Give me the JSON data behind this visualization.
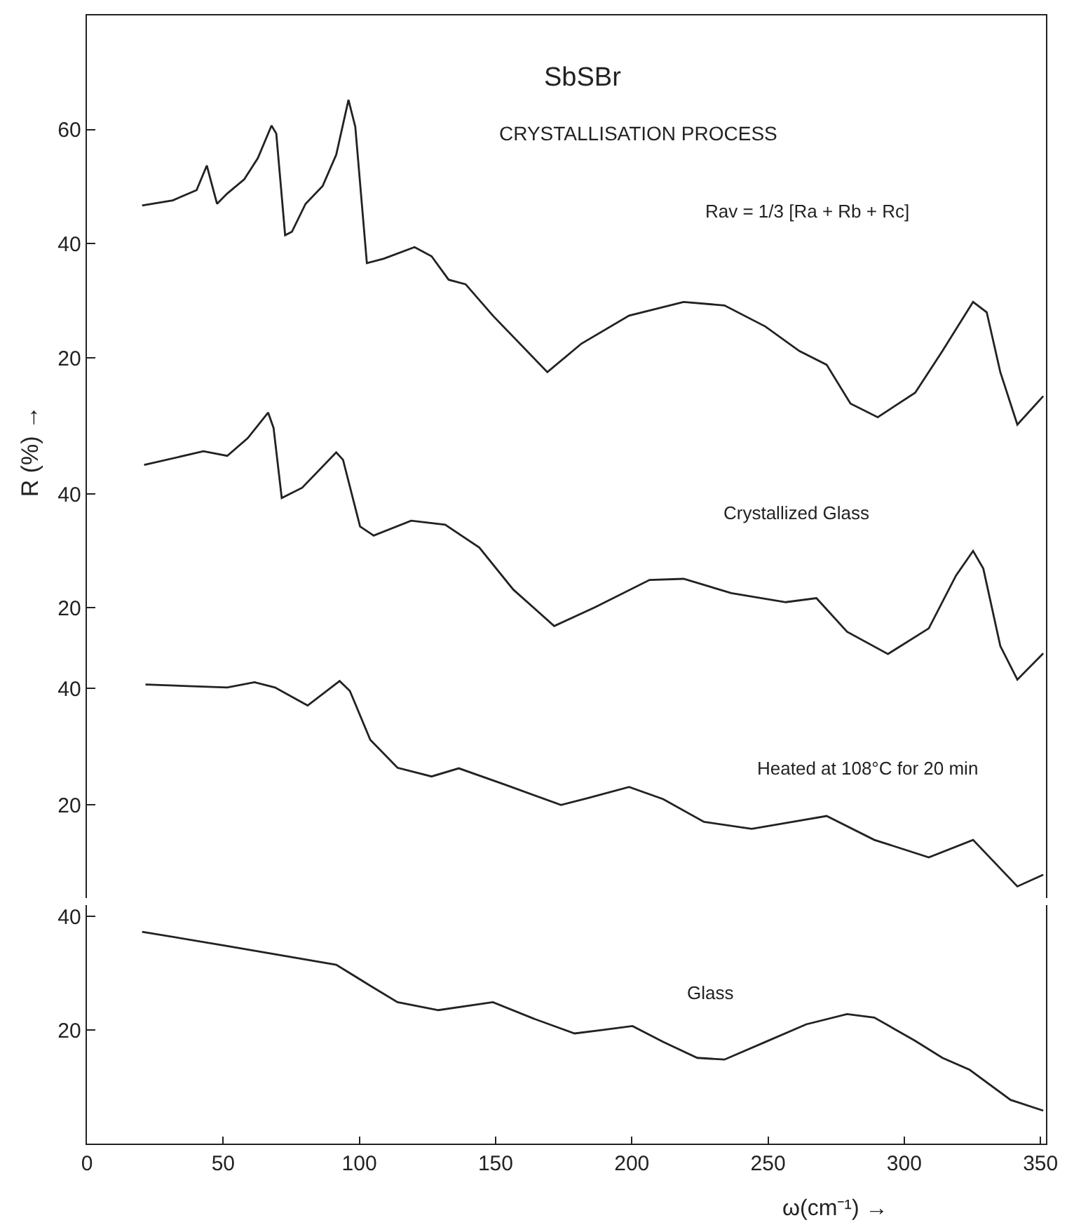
{
  "chart_data": [
    {
      "type": "line",
      "title": "SbSBr",
      "subtitle": "CRYSTALLISATION PROCESS",
      "xlim": [
        0,
        352
      ],
      "ylim": [
        6,
        80
      ],
      "yticks": [
        20,
        40,
        60
      ],
      "tick_labels": "y",
      "series": [
        {
          "name": "Rav = 1/3 [Ra + Rb + Rc]",
          "color": "#222222",
          "x": [
            20.25,
            31.5,
            40.25,
            44,
            47.75,
            51.5,
            57.75,
            62.75,
            67.75,
            69.5,
            72.75,
            75.25,
            80.25,
            86.5,
            91.5,
            96,
            98.5,
            102.75,
            109,
            120.25,
            126.5,
            132.75,
            139,
            149,
            169,
            181.5,
            199,
            219,
            234,
            249,
            261.5,
            271.5,
            280.25,
            290.25,
            304,
            314,
            325.25,
            330.25,
            335.25,
            341.5,
            351
          ],
          "values": [
            46.7,
            47.6,
            49.4,
            53.7,
            47.0,
            48.8,
            51.3,
            55.0,
            60.7,
            59.3,
            41.5,
            42.1,
            47.0,
            50.1,
            55.6,
            65.2,
            60.5,
            36.6,
            37.4,
            39.4,
            37.8,
            33.7,
            32.9,
            27.4,
            17.5,
            22.5,
            27.4,
            29.8,
            29.2,
            25.5,
            21.2,
            18.8,
            12.0,
            9.6,
            13.9,
            21.2,
            29.8,
            28.0,
            17.5,
            8.3,
            13.3
          ]
        }
      ]
    },
    {
      "type": "line",
      "ylabel": "R (%) →",
      "xlim": [
        0,
        352
      ],
      "ylim": [
        6,
        58
      ],
      "yticks": [
        20,
        40
      ],
      "tick_labels": "y",
      "series": [
        {
          "name": "Crystallized Glass",
          "color": "#222222",
          "x": [
            21,
            42.75,
            51.5,
            59,
            66.5,
            68.5,
            71.5,
            79,
            91.5,
            94,
            100.25,
            105.25,
            119,
            131.5,
            144,
            156.5,
            171.5,
            186.5,
            206.5,
            219,
            236.5,
            256.5,
            267.75,
            279,
            294,
            309,
            319,
            325.25,
            329,
            335.25,
            341.5,
            351
          ],
          "values": [
            45.1,
            47.5,
            46.7,
            49.8,
            54.3,
            51.6,
            39.3,
            41.1,
            47.3,
            46.0,
            34.3,
            32.7,
            35.3,
            34.6,
            30.6,
            23.2,
            16.8,
            20.1,
            24.9,
            25.1,
            22.6,
            21.0,
            21.7,
            15.8,
            11.9,
            16.4,
            25.7,
            30.0,
            26.9,
            13.3,
            7.4,
            12.0
          ]
        }
      ]
    },
    {
      "type": "line",
      "xlim": [
        0,
        352
      ],
      "ylim": [
        4,
        45
      ],
      "yticks": [
        20,
        40
      ],
      "tick_labels": "y",
      "series": [
        {
          "name": "Heated at 108°C for 20 min",
          "color": "#222222",
          "x": [
            21.5,
            51.5,
            61.5,
            69,
            81,
            92.75,
            96.5,
            104,
            114,
            126.5,
            136.5,
            154,
            174,
            184,
            199,
            211.5,
            226.5,
            244,
            259,
            271.5,
            289,
            309,
            325.25,
            341.5,
            351
          ],
          "values": [
            40.7,
            40.2,
            41.1,
            40.2,
            37.1,
            41.3,
            39.6,
            31.2,
            26.4,
            24.9,
            26.3,
            23.4,
            20.0,
            21.2,
            23.1,
            21.0,
            17.1,
            15.9,
            17.1,
            18.1,
            14.0,
            11.0,
            14.0,
            6.0,
            8.0
          ]
        }
      ]
    },
    {
      "type": "line",
      "xlabel": "ω(cm⁻¹) →",
      "xlim": [
        0,
        352
      ],
      "xticks": [
        0,
        50,
        100,
        150,
        200,
        250,
        300,
        350
      ],
      "ylim": [
        0,
        42
      ],
      "yticks": [
        20,
        40
      ],
      "series": [
        {
          "name": "Glass",
          "color": "#222222",
          "x": [
            20.25,
            51.5,
            91.5,
            104,
            114,
            129,
            149,
            164,
            179,
            189,
            200.25,
            211.5,
            224,
            234,
            249,
            264,
            279,
            289,
            304,
            314,
            324,
            339,
            351
          ],
          "values": [
            37.3,
            34.8,
            31.5,
            27.8,
            24.9,
            23.5,
            24.9,
            22.0,
            19.4,
            20.0,
            20.7,
            17.9,
            15.1,
            14.8,
            17.9,
            21.0,
            22.8,
            22.2,
            18.1,
            15.1,
            13.0,
            7.7,
            5.8
          ]
        }
      ]
    }
  ]
}
